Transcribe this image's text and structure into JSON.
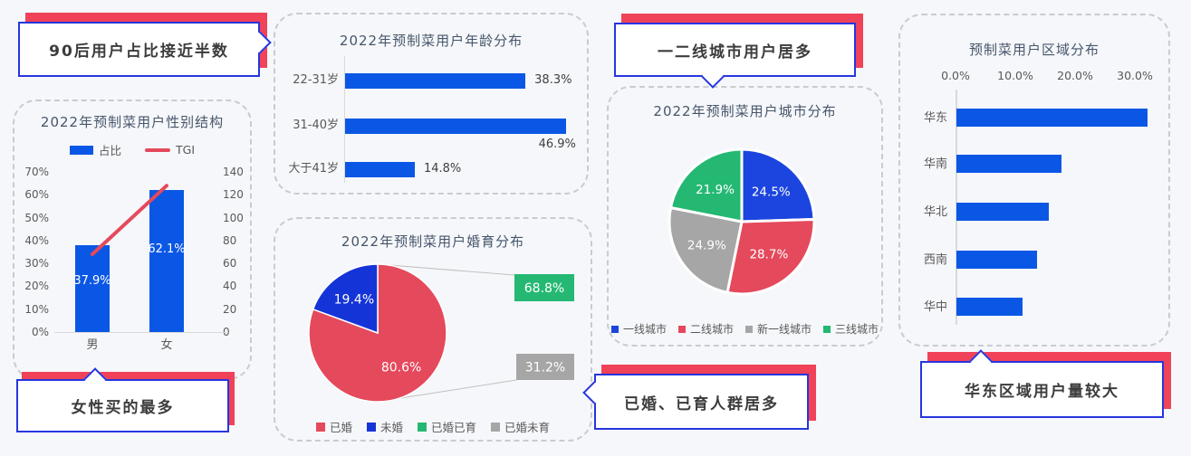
{
  "colors": {
    "background": "#F6F7FA",
    "bar_blue": "#0B57E5",
    "line_red": "#E5495C",
    "pie_red": "#E5495C",
    "pie_blue_marriage": "#1534D8",
    "pie_blue_city": "#1C45DF",
    "green": "#25B873",
    "gray": "#A6A6A6",
    "banner_border": "#2636DE",
    "banner_shadow": "#F04258",
    "title_text": "#46566B",
    "axis_text": "#595959",
    "dashed_border": "#C9CBCF"
  },
  "banners": {
    "age": "90后用户占比接近半数",
    "gender": "女性买的最多",
    "city": "一二线城市用户居多",
    "marriage": "已婚、已育人群居多",
    "region": "华东区域用户量较大"
  },
  "chart_data": [
    {
      "id": "gender",
      "type": "bar",
      "combo": "bar+line",
      "title": "2022年预制菜用户性别结构",
      "categories": [
        "男",
        "女"
      ],
      "series": [
        {
          "name": "占比",
          "type": "bar",
          "values": [
            37.9,
            62.1
          ],
          "data_labels": [
            "37.9%",
            "62.1%"
          ],
          "color": "#0B57E5",
          "axis": "left"
        },
        {
          "name": "TGI",
          "type": "line",
          "values": [
            68,
            128
          ],
          "color": "#E5495C",
          "axis": "right"
        }
      ],
      "left_axis_ticks": [
        "70%",
        "60%",
        "50%",
        "40%",
        "30%",
        "20%",
        "10%",
        "0%"
      ],
      "left_axis_max": 70,
      "right_axis_ticks": [
        "140",
        "120",
        "100",
        "80",
        "60",
        "40",
        "20",
        "0"
      ],
      "right_axis_max": 140,
      "legend_position": "top"
    },
    {
      "id": "age",
      "type": "bar",
      "orientation": "horizontal",
      "title": "2022年预制菜用户年龄分布",
      "categories": [
        "22-31岁",
        "31-40岁",
        "大于41岁"
      ],
      "values": [
        38.3,
        46.9,
        14.8
      ],
      "data_labels": [
        "38.3%",
        "46.9%",
        "14.8%"
      ],
      "color": "#0B57E5",
      "xmax": 50,
      "grid": false
    },
    {
      "id": "marriage",
      "type": "pie",
      "variant": "bar-of-pie",
      "title": "2022年预制菜用户婚育分布",
      "slices": [
        {
          "label": "已婚",
          "value": 80.6,
          "display": "80.6%",
          "color": "#E5495C"
        },
        {
          "label": "未婚",
          "value": 19.4,
          "display": "19.4%",
          "color": "#1534D8"
        }
      ],
      "breakout_bars": [
        {
          "label": "已婚已育",
          "value": 68.8,
          "display": "68.8%",
          "color": "#25B873"
        },
        {
          "label": "已婚未育",
          "value": 31.2,
          "display": "31.2%",
          "color": "#A6A6A6"
        }
      ],
      "legend": [
        "已婚",
        "未婚",
        "已婚已育",
        "已婚未育"
      ],
      "legend_position": "bottom"
    },
    {
      "id": "city",
      "type": "pie",
      "title": "2022年预制菜用户城市分布",
      "slices": [
        {
          "label": "一线城市",
          "value": 24.5,
          "display": "24.5%",
          "color": "#1C45DF"
        },
        {
          "label": "二线城市",
          "value": 28.7,
          "display": "28.7%",
          "color": "#E5495C"
        },
        {
          "label": "新一线城市",
          "value": 24.9,
          "display": "24.9%",
          "color": "#A6A6A6"
        },
        {
          "label": "三线城市",
          "value": 21.9,
          "display": "21.9%",
          "color": "#25B873"
        }
      ],
      "legend": [
        "一线城市",
        "二线城市",
        "新一线城市",
        "三线城市"
      ],
      "legend_position": "bottom"
    },
    {
      "id": "region",
      "type": "bar",
      "orientation": "horizontal",
      "title": "预制菜用户区域分布",
      "categories": [
        "华东",
        "华南",
        "华北",
        "西南",
        "华中"
      ],
      "values": [
        32,
        17.5,
        15.5,
        13.5,
        11
      ],
      "x_axis_ticks": [
        "0.0%",
        "10.0%",
        "20.0%",
        "30.0%"
      ],
      "x_axis_position": "top",
      "xmax": 36,
      "color": "#0B57E5",
      "grid": false
    }
  ]
}
